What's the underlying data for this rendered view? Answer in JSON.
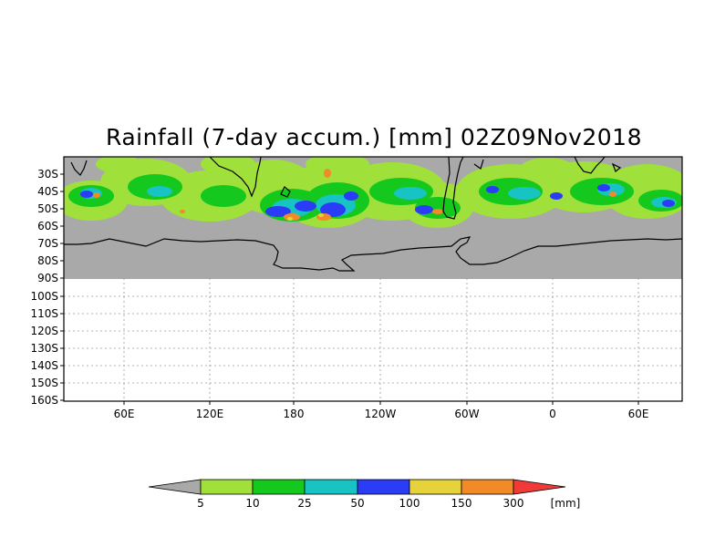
{
  "title": "Rainfall (7-day accum.) [mm] 02Z09Nov2018",
  "lat_labels": [
    "30S",
    "40S",
    "50S",
    "60S",
    "70S",
    "80S",
    "90S",
    "100S",
    "110S",
    "120S",
    "130S",
    "140S",
    "150S",
    "160S"
  ],
  "lon_labels": [
    "60E",
    "120E",
    "180",
    "120W",
    "60W",
    "0",
    "60E"
  ],
  "colorbar": {
    "unit": "[mm]",
    "ticks": [
      "5",
      "10",
      "25",
      "50",
      "100",
      "150",
      "300"
    ],
    "colors": {
      "below": "#a9a9a9",
      "b1": "#9fe03a",
      "b2": "#14c81e",
      "b3": "#18c3c3",
      "b4": "#2a3cf5",
      "b5": "#e6d23a",
      "b6": "#f28a28",
      "above": "#f03a3a"
    }
  },
  "colors": {
    "land_sea_no_rain": "#a9a9a9",
    "coastline": "#000000",
    "grid": "#9a9a9a"
  }
}
